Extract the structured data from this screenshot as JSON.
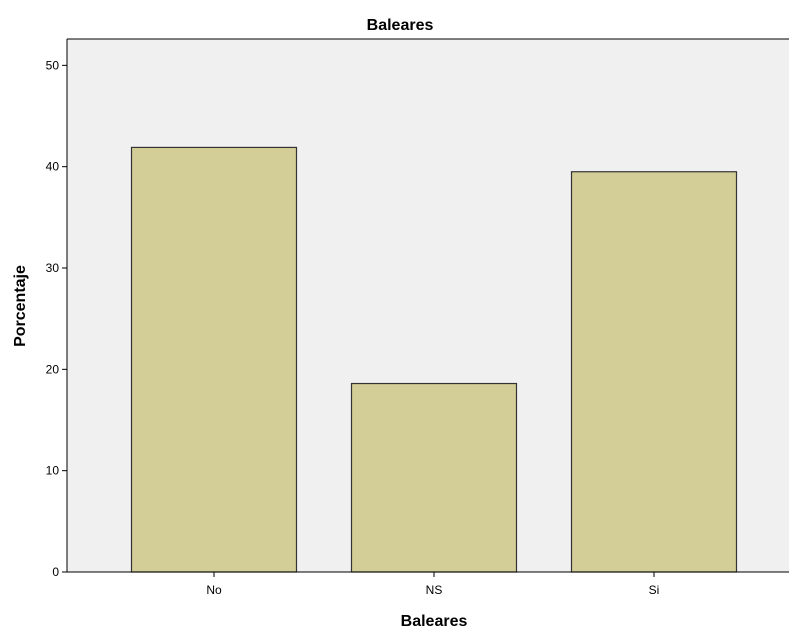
{
  "chart_data": {
    "type": "bar",
    "title": "Baleares",
    "xlabel": "Baleares",
    "ylabel": "Porcentaje",
    "categories": [
      "No",
      "NS",
      "Si"
    ],
    "values": [
      41.9,
      18.6,
      39.5
    ],
    "ylim": [
      0,
      52.6
    ],
    "yticks": [
      "0",
      "10",
      "20",
      "30",
      "40",
      "50"
    ],
    "grid": false,
    "legend": "none",
    "colors": {
      "bar_fill": "#d3ce97",
      "bar_stroke": "#333333",
      "plot_background": "#f0f0f0",
      "axis": "#000000"
    }
  }
}
